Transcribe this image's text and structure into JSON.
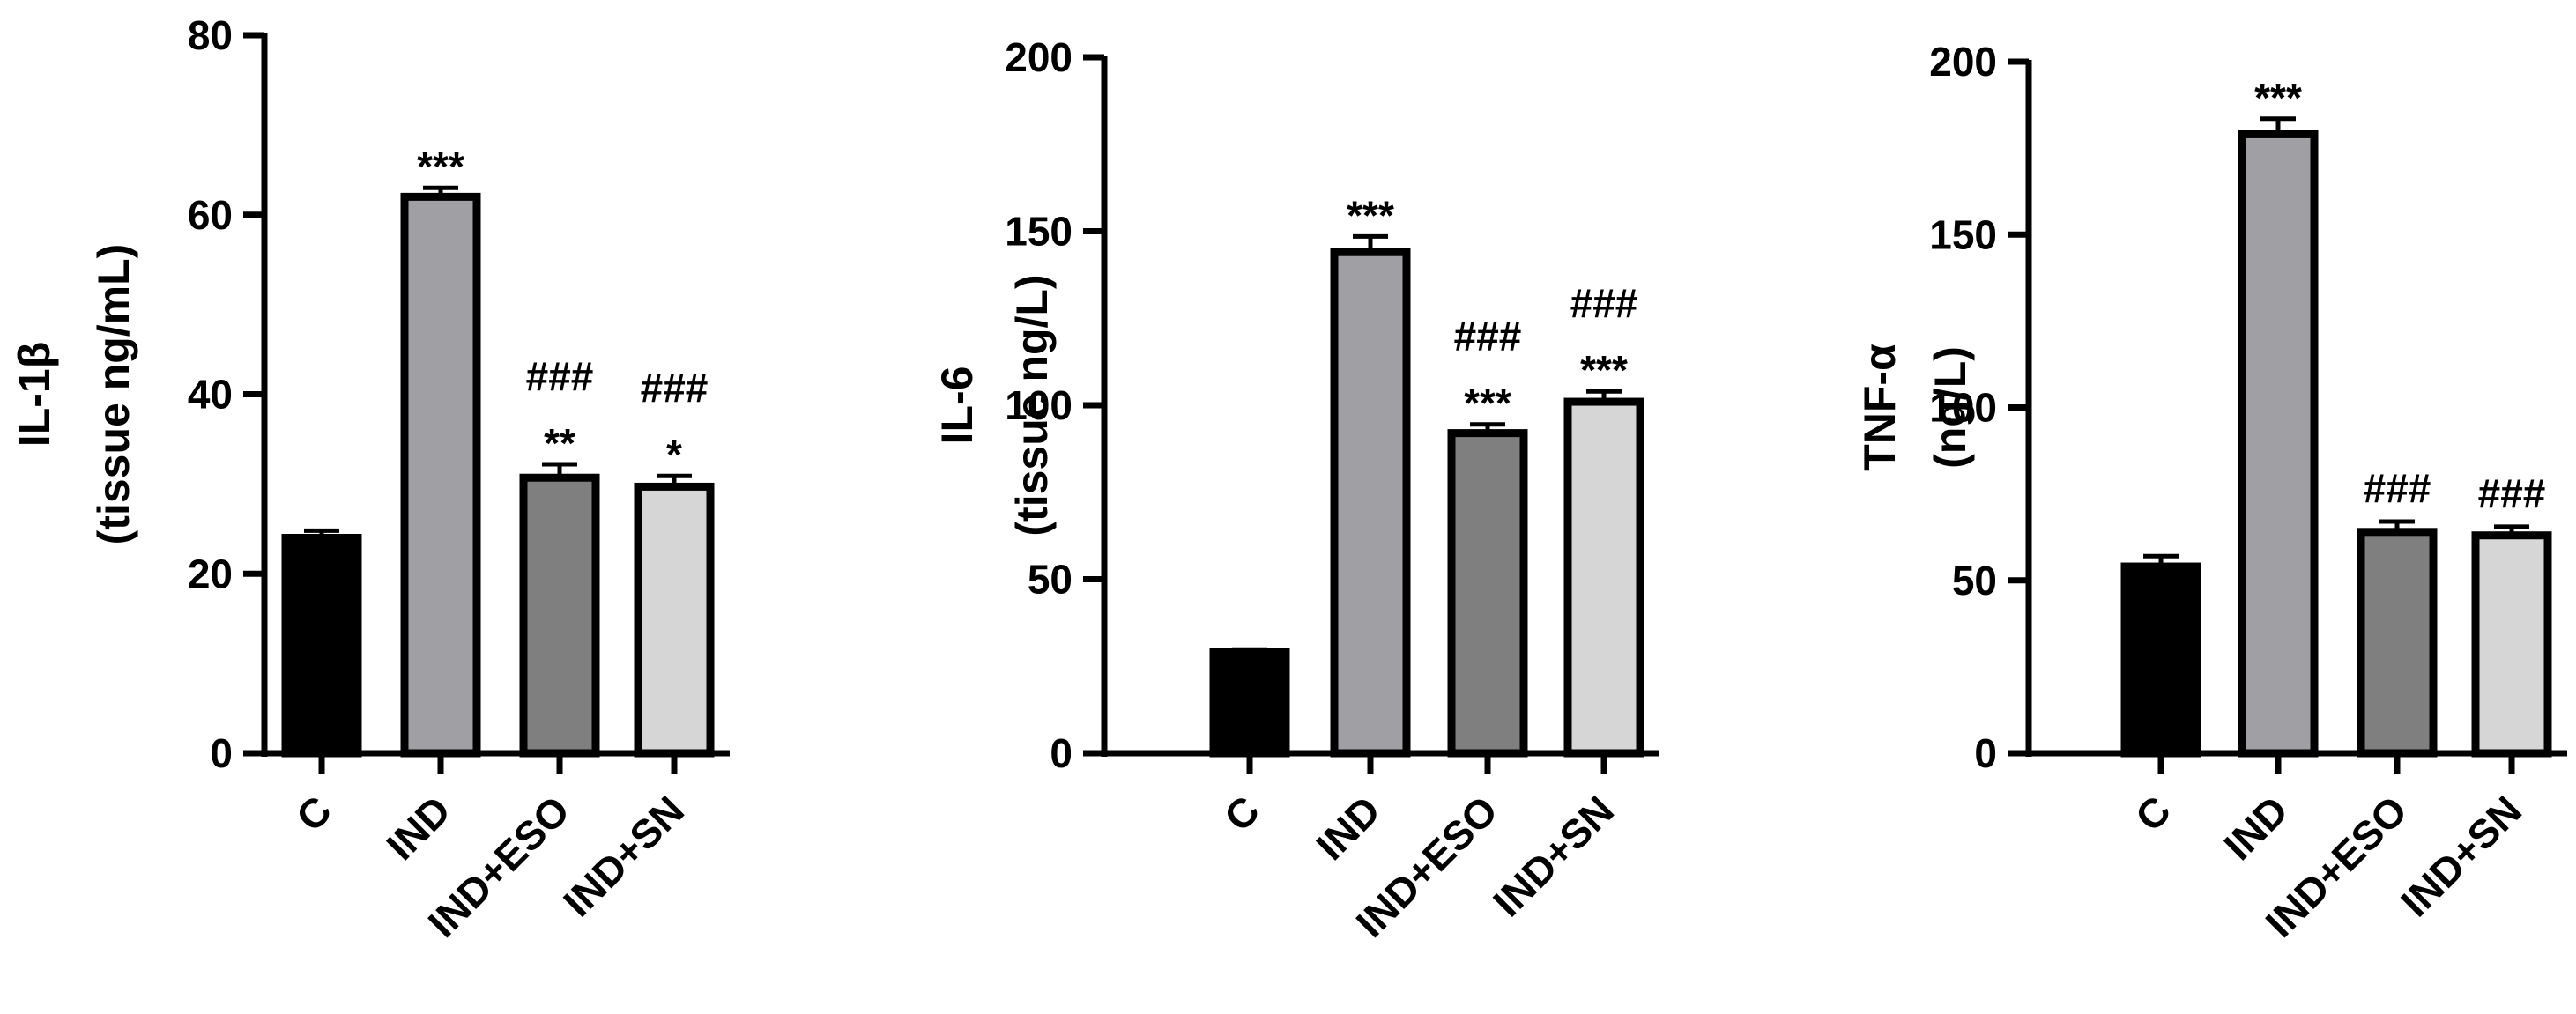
{
  "chart_data": [
    {
      "type": "bar",
      "ylabel_lines": [
        "IL-1β",
        "(tissue ng/mL)"
      ],
      "categories": [
        "C",
        "IND",
        "IND+ESO",
        "IND+SN"
      ],
      "values": [
        24,
        62,
        30.7,
        29.7
      ],
      "errors": [
        0.8,
        1.0,
        1.5,
        1.2
      ],
      "annotations_top": [
        "",
        "",
        "###",
        "###"
      ],
      "annotations_bottom": [
        "",
        "***",
        "**",
        "*"
      ],
      "yticks": [
        "0",
        "20",
        "40",
        "60",
        "80"
      ],
      "ylim": [
        0,
        80
      ],
      "bar_colors": [
        "#000000",
        "#a0a0a4",
        "#7f7f7f",
        "#d6d6d6"
      ]
    },
    {
      "type": "bar",
      "ylabel_lines": [
        "IL-6",
        "(tissue ng/L)"
      ],
      "categories": [
        "C",
        "IND",
        "IND+ESO",
        "IND+SN"
      ],
      "values": [
        29,
        144,
        92,
        101
      ],
      "errors": [
        0.8,
        4.5,
        2.5,
        3.0
      ],
      "annotations_top": [
        "",
        "",
        "###",
        "###"
      ],
      "annotations_bottom": [
        "",
        "***",
        "***",
        "***"
      ],
      "yticks": [
        "0",
        "50",
        "100",
        "150",
        "200"
      ],
      "ylim": [
        0,
        200
      ],
      "bar_colors": [
        "#000000",
        "#a0a0a4",
        "#7f7f7f",
        "#d6d6d6"
      ]
    },
    {
      "type": "bar",
      "ylabel_lines": [
        "TNF-α",
        "(ng/L)"
      ],
      "categories": [
        "C",
        "IND",
        "IND+ESO",
        "IND+SN"
      ],
      "values": [
        54,
        179,
        64,
        63
      ],
      "errors": [
        3.0,
        4.5,
        3.0,
        2.5
      ],
      "annotations_top": [
        "",
        "",
        "###",
        "###"
      ],
      "annotations_bottom": [
        "",
        "***",
        "",
        ""
      ],
      "yticks": [
        "0",
        "50",
        "100",
        "150",
        "200"
      ],
      "ylim": [
        0,
        200
      ],
      "bar_colors": [
        "#000000",
        "#a0a0a4",
        "#7f7f7f",
        "#d6d6d6"
      ]
    }
  ]
}
